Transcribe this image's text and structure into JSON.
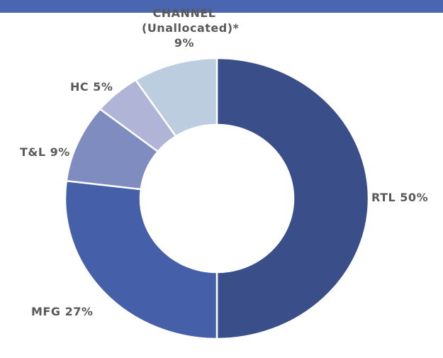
{
  "chart_data": {
    "type": "donut",
    "categories": [
      "RTL",
      "MFG",
      "T&L",
      "HC",
      "CHANNEL (Unallocated)*"
    ],
    "values": [
      50,
      27,
      9,
      5,
      9
    ],
    "value_labels": [
      "50%",
      "27%",
      "9%",
      "5%",
      "9%"
    ],
    "colors": [
      "#3a4f8a",
      "#4560a8",
      "#7f8cc0",
      "#b0b5d8",
      "#bccde0"
    ]
  }
}
